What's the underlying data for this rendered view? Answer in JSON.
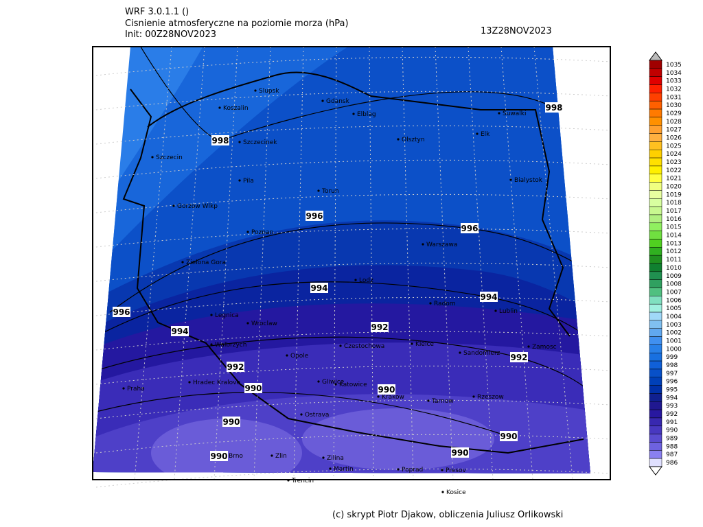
{
  "header": {
    "model": "WRF 3.0.1.1 ()",
    "title": "Cisnienie atmosferyczne na poziomie morza (hPa)",
    "init": "Init: 00Z28NOV2023",
    "valid": "13Z28NOV2023"
  },
  "cities": [
    "Slupsk",
    "Koszalin",
    "Gdansk",
    "Elblag",
    "Suwalki",
    "Szczecinek",
    "Olsztyn",
    "Elk",
    "Szczecin",
    "Pila",
    "Bialystok",
    "Torun",
    "Gorzow Wlkp",
    "Poznan",
    "Warszawa",
    "Zielona Gora",
    "Lodz",
    "Radom",
    "Lublin",
    "Legnica",
    "Wroclaw",
    "Walbrzych",
    "Czestochowa",
    "Kielce",
    "Zamosc",
    "Opole",
    "Sandomierz",
    "Hradec Kralove",
    "Gliwice",
    "Katowice",
    "Praha",
    "Krakow",
    "Tarnow",
    "Rzeszow",
    "Ostrava",
    "Brno",
    "Zlin",
    "Zilina",
    "Martin",
    "Poprad",
    "Presov",
    "Trencin",
    "Kosice"
  ],
  "isobar_labels": [
    998,
    998,
    996,
    996,
    996,
    994,
    994,
    994,
    992,
    992,
    992,
    990,
    990,
    990,
    990,
    990,
    990
  ],
  "colorbar": {
    "labels": [
      1035,
      1034,
      1033,
      1032,
      1031,
      1030,
      1029,
      1028,
      1027,
      1026,
      1025,
      1024,
      1023,
      1022,
      1021,
      1020,
      1019,
      1018,
      1017,
      1016,
      1015,
      1014,
      1013,
      1012,
      1011,
      1010,
      1009,
      1008,
      1007,
      1006,
      1005,
      1004,
      1003,
      1002,
      1001,
      1000,
      999,
      998,
      997,
      996,
      995,
      994,
      993,
      992,
      991,
      990,
      989,
      988,
      987,
      986
    ],
    "colors": [
      "#a00000",
      "#c00000",
      "#e00000",
      "#ff2000",
      "#ff4000",
      "#ff6000",
      "#ff7a00",
      "#ff9000",
      "#ffa030",
      "#ffb040",
      "#ffc020",
      "#ffd000",
      "#ffe000",
      "#fff000",
      "#ffff40",
      "#f0ff80",
      "#e8ffa0",
      "#d8ffa0",
      "#c8f890",
      "#b0f080",
      "#90f060",
      "#70e040",
      "#50d020",
      "#30b020",
      "#209020",
      "#108030",
      "#209050",
      "#30a060",
      "#50c080",
      "#80e0c0",
      "#a0f0e0",
      "#a0d8f8",
      "#80c0f0",
      "#60a8f0",
      "#4090f0",
      "#2880e8",
      "#1870e0",
      "#1060d8",
      "#0850c8",
      "#0040b8",
      "#0030a8",
      "#102090",
      "#201890",
      "#2818a0",
      "#3828b0",
      "#4838c0",
      "#5a4cd0",
      "#6e62e0",
      "#8a80f0",
      "#e0e0ff"
    ]
  },
  "credit": "(c) skrypt Piotr Djakow, obliczenia Juliusz Orlikowski"
}
